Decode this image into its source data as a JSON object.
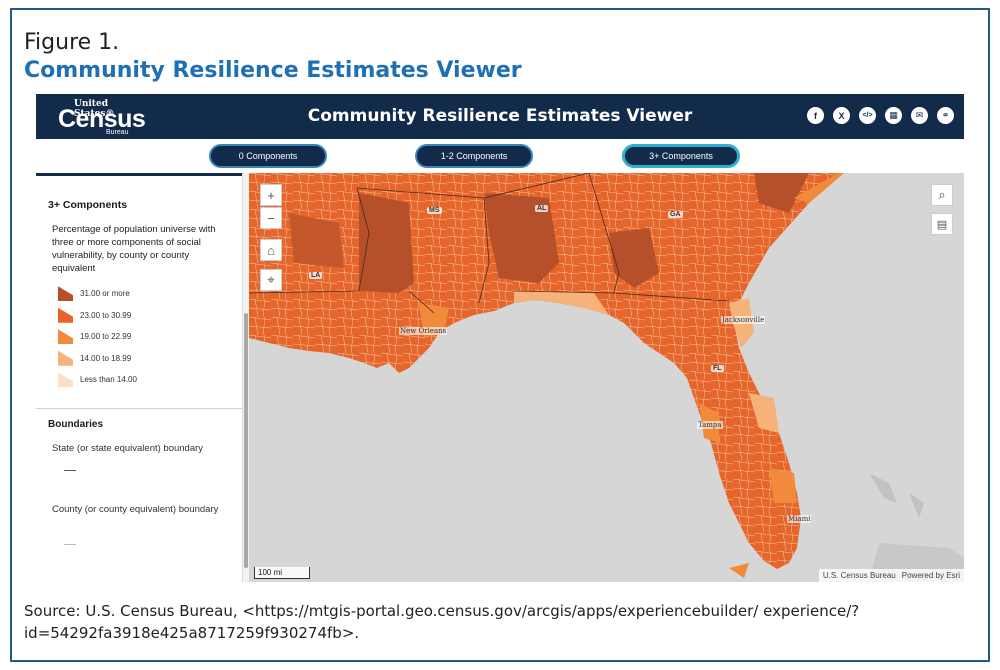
{
  "figure": {
    "label": "Figure 1.",
    "title": "Community Resilience Estimates Viewer",
    "source": "Source: U.S. Census Bureau, <https://mtgis-portal.geo.census.gov/arcgis/apps/experiencebuilder/ experience/?id=54292fa3918e425a8717259f930274fb>."
  },
  "header": {
    "logo_top": "United States®",
    "logo_main": "Census",
    "logo_bottom": "Bureau",
    "title": "Community Resilience Estimates Viewer",
    "share_icons": [
      {
        "name": "facebook-icon",
        "glyph": "f"
      },
      {
        "name": "x-icon",
        "glyph": "X"
      },
      {
        "name": "embed-icon",
        "glyph": "</>"
      },
      {
        "name": "qr-code-icon",
        "glyph": "▦"
      },
      {
        "name": "email-icon",
        "glyph": "✉"
      },
      {
        "name": "link-icon",
        "glyph": "⚭"
      }
    ]
  },
  "tabs": [
    {
      "label": "0 Components",
      "active": false
    },
    {
      "label": "1-2 Components",
      "active": false
    },
    {
      "label": "3+ Components",
      "active": true
    }
  ],
  "sidebar": {
    "title": "3+ Components",
    "description": "Percentage of population universe with three or more components of social vulnerability, by county or county equivalent",
    "legend": [
      {
        "label": "31.00 or more",
        "color": "#b5502a"
      },
      {
        "label": "23.00 to 30.99",
        "color": "#e8622a"
      },
      {
        "label": "19.00 to 22.99",
        "color": "#f28a3c"
      },
      {
        "label": "14.00 to 18.99",
        "color": "#f7b27a"
      },
      {
        "label": "Less than 14.00",
        "color": "#fbe0c8"
      }
    ],
    "boundaries_title": "Boundaries",
    "state_boundary": "State (or state equivalent) boundary",
    "county_boundary": "County (or county equivalent) boundary"
  },
  "map": {
    "scale_label": "100 mi",
    "attribution_1": "U.S. Census Bureau",
    "attribution_2": "Powered by Esri",
    "state_labels": [
      "MS",
      "AL",
      "GA",
      "LA",
      "FL"
    ],
    "city_labels": [
      "New Orleans",
      "Jacksonville",
      "Tampa",
      "Miami"
    ],
    "controls": {
      "zoom_in": "+",
      "zoom_out": "−",
      "home": "⌂",
      "locate": "⌖",
      "search": "⌕",
      "legend": "▤"
    }
  }
}
